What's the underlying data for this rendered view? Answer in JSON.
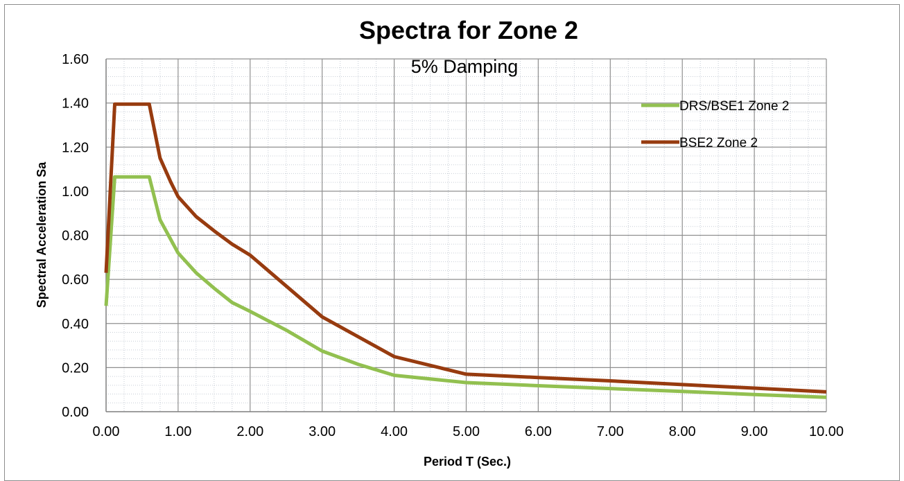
{
  "chart_data": {
    "type": "line",
    "title": "Spectra for Zone 2",
    "subtitle": "5% Damping",
    "xlabel": "Period  T (Sec.)",
    "ylabel": "Spectral Acceleration  Sa",
    "xlim": [
      0,
      10
    ],
    "ylim": [
      0,
      1.6
    ],
    "x_ticks": [
      "0.00",
      "1.00",
      "2.00",
      "3.00",
      "4.00",
      "5.00",
      "6.00",
      "7.00",
      "8.00",
      "9.00",
      "10.00"
    ],
    "y_ticks": [
      "0.00",
      "0.20",
      "0.40",
      "0.60",
      "0.80",
      "1.00",
      "1.20",
      "1.40",
      "1.60"
    ],
    "grid": "major and minor",
    "legend_position": "top-right",
    "series": [
      {
        "name": "DRS/BSE1 Zone 2",
        "color": "#92c050",
        "points": [
          [
            0,
            0.48
          ],
          [
            0.12,
            1.065
          ],
          [
            0.6,
            1.065
          ],
          [
            0.75,
            0.87
          ],
          [
            1.0,
            0.72
          ],
          [
            1.25,
            0.63
          ],
          [
            1.5,
            0.56
          ],
          [
            1.75,
            0.495
          ],
          [
            2.0,
            0.455
          ],
          [
            2.5,
            0.37
          ],
          [
            3.0,
            0.275
          ],
          [
            3.5,
            0.215
          ],
          [
            4.0,
            0.165
          ],
          [
            5.0,
            0.132
          ],
          [
            6.0,
            0.118
          ],
          [
            7.0,
            0.105
          ],
          [
            8.0,
            0.092
          ],
          [
            9.0,
            0.078
          ],
          [
            10.0,
            0.065
          ]
        ]
      },
      {
        "name": "BSE2 Zone 2",
        "color": "#973b0f",
        "points": [
          [
            0,
            0.63
          ],
          [
            0.12,
            1.395
          ],
          [
            0.6,
            1.395
          ],
          [
            0.75,
            1.15
          ],
          [
            0.9,
            1.04
          ],
          [
            1.0,
            0.975
          ],
          [
            1.25,
            0.885
          ],
          [
            1.5,
            0.82
          ],
          [
            1.75,
            0.76
          ],
          [
            2.0,
            0.71
          ],
          [
            2.5,
            0.57
          ],
          [
            3.0,
            0.43
          ],
          [
            3.5,
            0.34
          ],
          [
            4.0,
            0.25
          ],
          [
            4.5,
            0.21
          ],
          [
            5.0,
            0.17
          ],
          [
            6.0,
            0.155
          ],
          [
            7.0,
            0.14
          ],
          [
            8.0,
            0.123
          ],
          [
            9.0,
            0.107
          ],
          [
            10.0,
            0.09
          ]
        ]
      }
    ]
  }
}
